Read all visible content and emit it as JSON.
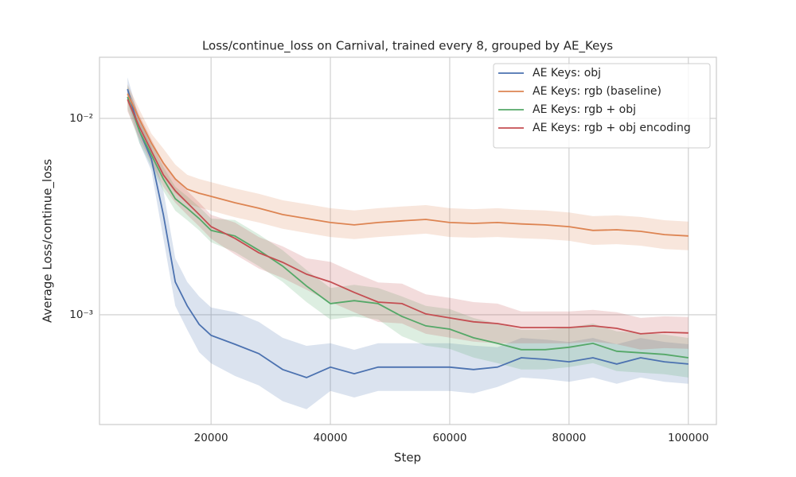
{
  "chart_data": {
    "type": "line",
    "title": "Loss/continue_loss on Carnival, trained every 8, grouped by AE_Keys",
    "x_label": "Step",
    "y_label": "Average Loss/continue_loss",
    "yscale": "log",
    "grid": true,
    "legend": "upper right",
    "xlim": [
      1300,
      104700
    ],
    "ylim": [
      0.000276,
      0.0205
    ],
    "xticks": [
      20000,
      40000,
      60000,
      80000,
      100000
    ],
    "yticks": [
      {
        "value": 0.001,
        "label": "10⁻³"
      },
      {
        "value": 0.01,
        "label": "10⁻²"
      }
    ],
    "x": [
      6000,
      8000,
      10000,
      12000,
      14000,
      16000,
      18000,
      20000,
      24000,
      28000,
      32000,
      36000,
      40000,
      44000,
      48000,
      52000,
      56000,
      60000,
      64000,
      68000,
      72000,
      76000,
      80000,
      84000,
      88000,
      92000,
      96000,
      100000
    ],
    "series": [
      {
        "name": "AE Keys: obj",
        "color": "#4c72b0",
        "values": [
          0.0141,
          0.00861,
          0.00622,
          0.00324,
          0.00147,
          0.00111,
          0.000894,
          0.000785,
          0.000708,
          0.000634,
          0.000526,
          0.000479,
          0.000541,
          0.000501,
          0.000541,
          0.000541,
          0.000541,
          0.000541,
          0.000526,
          0.000541,
          0.000604,
          0.000593,
          0.000576,
          0.000604,
          0.000561,
          0.000604,
          0.000576,
          0.000561
        ],
        "upper": [
          0.0162,
          0.0099,
          0.00715,
          0.00429,
          0.00194,
          0.00147,
          0.00124,
          0.00109,
          0.00103,
          0.00092,
          0.000763,
          0.000695,
          0.000716,
          0.000663,
          0.000716,
          0.000716,
          0.000716,
          0.000716,
          0.000696,
          0.000683,
          0.000762,
          0.000748,
          0.000727,
          0.000762,
          0.000708,
          0.000762,
          0.000727,
          0.000708
        ],
        "lower": [
          0.01226,
          0.00749,
          0.00541,
          0.00245,
          0.00111,
          0.000839,
          0.000645,
          0.000566,
          0.000488,
          0.000437,
          0.000363,
          0.00033,
          0.000409,
          0.000379,
          0.000409,
          0.000409,
          0.000409,
          0.000409,
          0.000398,
          0.000429,
          0.000479,
          0.00047,
          0.000456,
          0.000479,
          0.000445,
          0.000479,
          0.000456,
          0.000445
        ]
      },
      {
        "name": "AE Keys: rgb (baseline)",
        "color": "#dd8452",
        "values": [
          0.01337,
          0.00991,
          0.00749,
          0.00593,
          0.00492,
          0.00436,
          0.00416,
          0.00401,
          0.00372,
          0.00349,
          0.00324,
          0.00309,
          0.00295,
          0.00287,
          0.00295,
          0.00301,
          0.00306,
          0.00295,
          0.00292,
          0.00295,
          0.0029,
          0.00287,
          0.00281,
          0.00269,
          0.00271,
          0.00266,
          0.00256,
          0.00252
        ],
        "upper": [
          0.01495,
          0.01108,
          0.00837,
          0.00702,
          0.00582,
          0.00516,
          0.00492,
          0.00474,
          0.0044,
          0.00413,
          0.00383,
          0.00366,
          0.00349,
          0.0034,
          0.00349,
          0.00356,
          0.00362,
          0.00349,
          0.00345,
          0.00349,
          0.00343,
          0.0034,
          0.00332,
          0.00318,
          0.00321,
          0.00315,
          0.00303,
          0.00298
        ],
        "lower": [
          0.01196,
          0.00886,
          0.0067,
          0.00501,
          0.00416,
          0.00369,
          0.00352,
          0.00339,
          0.00314,
          0.00295,
          0.00274,
          0.00261,
          0.00249,
          0.00243,
          0.00249,
          0.00254,
          0.00259,
          0.00249,
          0.00247,
          0.00249,
          0.00245,
          0.00243,
          0.00238,
          0.00227,
          0.00229,
          0.00225,
          0.00216,
          0.00213
        ]
      },
      {
        "name": "AE Keys: rgb + obj",
        "color": "#55a868",
        "values": [
          0.01285,
          0.00861,
          0.00652,
          0.00492,
          0.0039,
          0.00349,
          0.00309,
          0.00269,
          0.00252,
          0.00213,
          0.00177,
          0.0014,
          0.00114,
          0.00118,
          0.00114,
          0.000981,
          0.000878,
          0.000845,
          0.000763,
          0.000715,
          0.000664,
          0.000664,
          0.000683,
          0.000715,
          0.000652,
          0.00064,
          0.000628,
          0.000604
        ],
        "upper": [
          0.01478,
          0.0099,
          0.0075,
          0.00566,
          0.00449,
          0.00401,
          0.00355,
          0.00309,
          0.00304,
          0.00257,
          0.00213,
          0.00169,
          0.00137,
          0.00142,
          0.00137,
          0.00124,
          0.00111,
          0.00107,
          0.000963,
          0.000902,
          0.000838,
          0.000838,
          0.000862,
          0.000902,
          0.000823,
          0.000808,
          0.000793,
          0.000762
        ],
        "lower": [
          0.01117,
          0.00749,
          0.00567,
          0.00428,
          0.00339,
          0.00303,
          0.00269,
          0.00234,
          0.00209,
          0.00177,
          0.00147,
          0.00116,
          0.000946,
          0.000979,
          0.000946,
          0.000777,
          0.000696,
          0.00067,
          0.000605,
          0.000567,
          0.000526,
          0.000526,
          0.000541,
          0.000567,
          0.000517,
          0.000507,
          0.000498,
          0.000479
        ]
      },
      {
        "name": "AE Keys: rgb + obj encoding",
        "color": "#c44e52",
        "values": [
          0.0125,
          0.00903,
          0.00682,
          0.00516,
          0.00428,
          0.00372,
          0.00324,
          0.00281,
          0.00245,
          0.00207,
          0.00185,
          0.00161,
          0.00147,
          0.0013,
          0.00116,
          0.00114,
          0.00101,
          0.000964,
          0.000921,
          0.000902,
          0.000861,
          0.000861,
          0.000861,
          0.000878,
          0.000853,
          0.0008,
          0.000815,
          0.000808
        ],
        "upper": [
          0.01438,
          0.01038,
          0.00784,
          0.00593,
          0.00492,
          0.00428,
          0.00373,
          0.00323,
          0.00295,
          0.00249,
          0.00223,
          0.00194,
          0.00186,
          0.00164,
          0.00146,
          0.00144,
          0.00127,
          0.00122,
          0.00116,
          0.00114,
          0.00104,
          0.00104,
          0.00104,
          0.00106,
          0.00103,
          0.000964,
          0.000982,
          0.000974
        ],
        "lower": [
          0.01087,
          0.00785,
          0.00593,
          0.00449,
          0.00372,
          0.00323,
          0.00282,
          0.00244,
          0.00203,
          0.00172,
          0.00154,
          0.00134,
          0.00116,
          0.00103,
          0.000919,
          0.000903,
          0.0008,
          0.000764,
          0.00073,
          0.000715,
          0.000715,
          0.000715,
          0.000715,
          0.000729,
          0.000708,
          0.000664,
          0.000676,
          0.000671
        ]
      }
    ]
  }
}
